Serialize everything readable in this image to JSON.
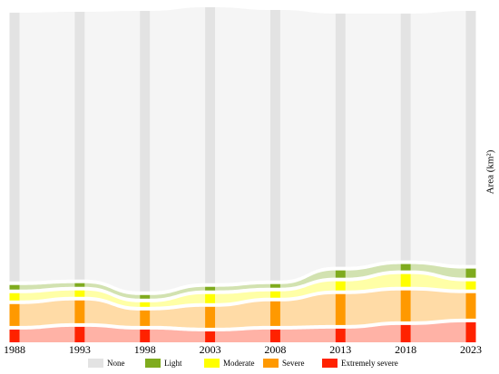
{
  "chart_data": {
    "type": "sankey",
    "y_label": "Area (km²)",
    "categories": [
      "1988",
      "1993",
      "1998",
      "2003",
      "2008",
      "2013",
      "2018",
      "2023"
    ],
    "series": [
      {
        "name": "None",
        "color": "#e3e3e3",
        "values": [
          295,
          294,
          308,
          303,
          297,
          278,
          271,
          279
        ]
      },
      {
        "name": "Light",
        "color": "#7fab1e",
        "values": [
          5,
          4,
          4,
          4,
          4,
          8,
          7,
          10
        ]
      },
      {
        "name": "Moderate",
        "color": "#ffff00",
        "values": [
          8,
          7,
          5,
          10,
          7,
          10,
          14,
          9
        ]
      },
      {
        "name": "Severe",
        "color": "#ff9900",
        "values": [
          24,
          25,
          17,
          23,
          27,
          34,
          34,
          28
        ]
      },
      {
        "name": "Extremely severe",
        "color": "#ff2200",
        "values": [
          14,
          17,
          14,
          12,
          14,
          15,
          19,
          22
        ]
      }
    ]
  }
}
